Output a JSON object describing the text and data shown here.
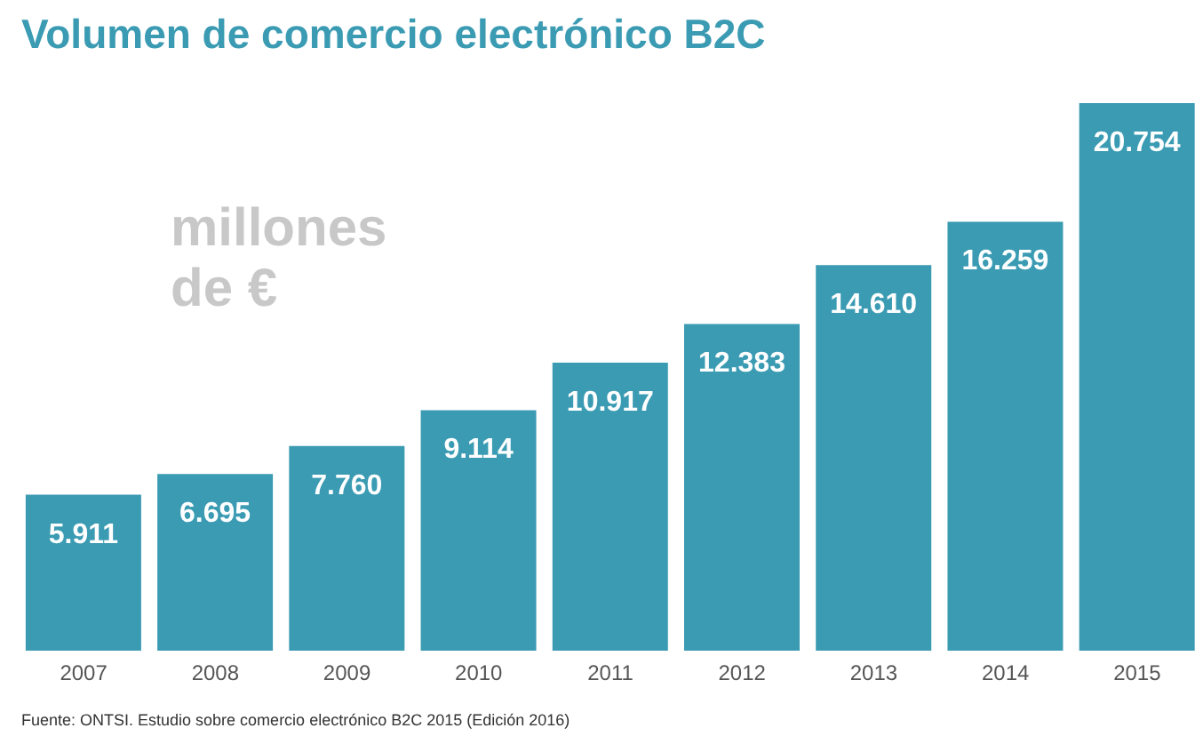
{
  "chart_data": {
    "type": "bar",
    "title": "Volumen de comercio electrónico B2C",
    "categories": [
      "2007",
      "2008",
      "2009",
      "2010",
      "2011",
      "2012",
      "2013",
      "2014",
      "2015"
    ],
    "values": [
      5911,
      6695,
      7760,
      9114,
      10917,
      12383,
      14610,
      16259,
      20754
    ],
    "value_labels": [
      "5.911",
      "6.695",
      "7.760",
      "9.114",
      "10.917",
      "12.383",
      "14.610",
      "16.259",
      "20.754"
    ],
    "color": "#3a9bb3",
    "annotations": [
      "millones de €",
      "Fuente: ONTSI. Estudio sobre comercio electrónico B2C 2015 (Edición 2016)"
    ],
    "grid": false,
    "legend": false
  }
}
